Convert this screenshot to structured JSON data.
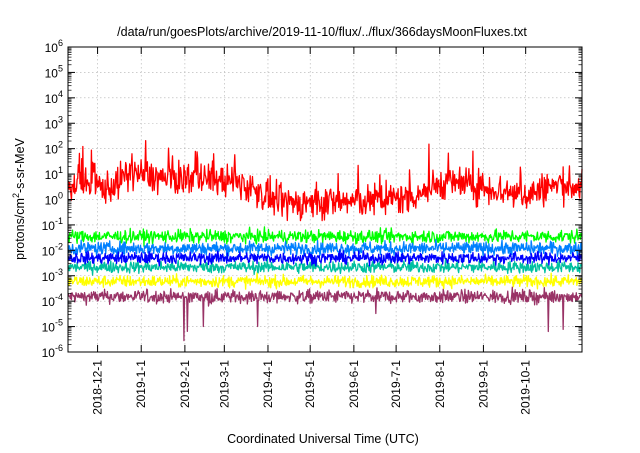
{
  "chart_data": {
    "type": "line",
    "title": "/data/run/goesPlots/archive/2019-11-10/flux/../flux/366daysMoonFluxes.txt",
    "xlabel": "Coordinated Universal Time (UTC)",
    "ylabel": {
      "main": "protons/cm",
      "sup": "2",
      "rest": "-s-sr-MeV"
    },
    "yscale": "log",
    "ylim": [
      -6,
      6
    ],
    "yticks": [
      {
        "base": "10",
        "exp": "-6"
      },
      {
        "base": "10",
        "exp": "-5"
      },
      {
        "base": "10",
        "exp": "-4"
      },
      {
        "base": "10",
        "exp": "-3"
      },
      {
        "base": "10",
        "exp": "-2"
      },
      {
        "base": "10",
        "exp": "-1"
      },
      {
        "base": "10",
        "exp": "0"
      },
      {
        "base": "10",
        "exp": "1"
      },
      {
        "base": "10",
        "exp": "2"
      },
      {
        "base": "10",
        "exp": "3"
      },
      {
        "base": "10",
        "exp": "4"
      },
      {
        "base": "10",
        "exp": "5"
      },
      {
        "base": "10",
        "exp": "6"
      }
    ],
    "xlim": [
      "2018-11-10",
      "2019-11-10"
    ],
    "xticks": [
      "2018-12-1",
      "2019-1-1",
      "2019-2-1",
      "2019-3-1",
      "2019-4-1",
      "2019-5-1",
      "2019-6-1",
      "2019-7-1",
      "2019-8-1",
      "2019-9-1",
      "2019-10-1"
    ],
    "grid": true,
    "series": [
      {
        "color": "#ff0000",
        "trend": [
          [
            "2018-11-10",
            4
          ],
          [
            "2018-12-10",
            3
          ],
          [
            "2018-12-25",
            12
          ],
          [
            "2019-1-20",
            6
          ],
          [
            "2019-2-10",
            8
          ],
          [
            "2019-3-15",
            4
          ],
          [
            "2019-4-10",
            0.7
          ],
          [
            "2019-5-15",
            0.8
          ],
          [
            "2019-6-15",
            0.9
          ],
          [
            "2019-7-10",
            1.2
          ],
          [
            "2019-8-5",
            5
          ],
          [
            "2019-9-1",
            3
          ],
          [
            "2019-10-1",
            1.5
          ],
          [
            "2019-10-25",
            4
          ],
          [
            "2019-11-10",
            3
          ]
        ]
      },
      {
        "color": "#00ff00",
        "trend": [
          [
            "2018-11-10",
            0.035
          ],
          [
            "2019-11-10",
            0.035
          ]
        ]
      },
      {
        "color": "#0080ff",
        "trend": [
          [
            "2018-11-10",
            0.012
          ],
          [
            "2019-11-10",
            0.012
          ]
        ]
      },
      {
        "color": "#0000ff",
        "trend": [
          [
            "2018-11-10",
            0.005
          ],
          [
            "2019-11-10",
            0.005
          ]
        ]
      },
      {
        "color": "#00c0a0",
        "trend": [
          [
            "2018-11-10",
            0.0022
          ],
          [
            "2019-11-10",
            0.0022
          ]
        ]
      },
      {
        "color": "#ffff00",
        "trend": [
          [
            "2018-11-10",
            0.0006
          ],
          [
            "2019-11-10",
            0.0006
          ]
        ]
      },
      {
        "color": "#993366",
        "trend": [
          [
            "2018-11-10",
            0.00015
          ],
          [
            "2019-11-10",
            0.00015
          ]
        ]
      }
    ]
  }
}
